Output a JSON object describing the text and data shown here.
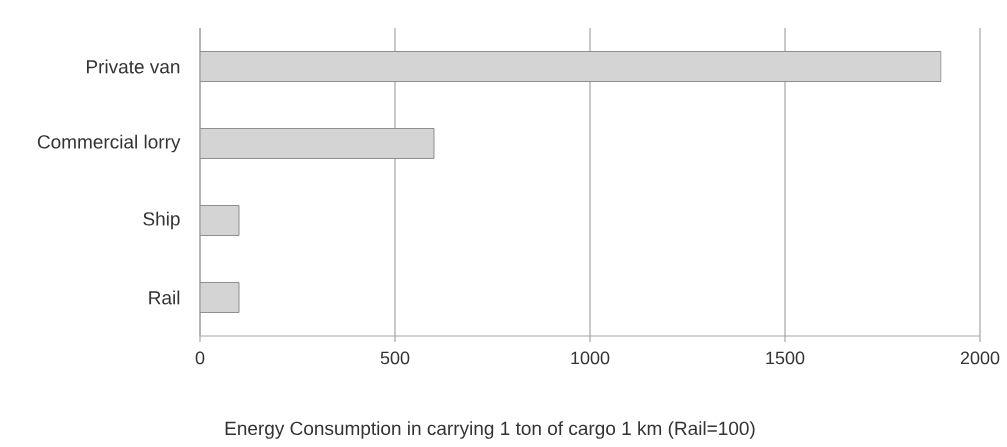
{
  "chart_data": {
    "type": "bar",
    "orientation": "horizontal",
    "xlabel": "Energy Consumption in carrying 1 ton of cargo 1 km (Rail=100)",
    "categories": [
      "Private van",
      "Commercial lorry",
      "Ship",
      "Rail"
    ],
    "values": [
      1900,
      600,
      100,
      100
    ],
    "color": "#d4d4d4",
    "xlim": [
      0,
      2000
    ],
    "xticks": [
      0,
      500,
      1000,
      1500,
      2000
    ],
    "grid": "x"
  }
}
